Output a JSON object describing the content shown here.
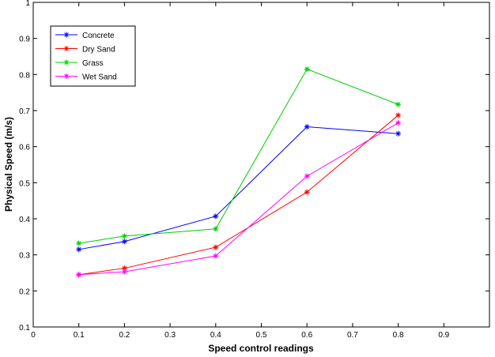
{
  "chart_data": {
    "type": "line",
    "title": "",
    "xlabel": "Speed control readings",
    "ylabel": "Physical Speed (m/s)",
    "xlim": [
      0,
      1
    ],
    "ylim": [
      0.1,
      1
    ],
    "xticks": [
      "0",
      "0.1",
      "0.2",
      "0.3",
      "0.4",
      "0.5",
      "0.6",
      "0.7",
      "0.8",
      "0.9"
    ],
    "xtick_values": [
      0,
      0.1,
      0.2,
      0.3,
      0.4,
      0.5,
      0.6,
      0.7,
      0.8,
      0.9
    ],
    "yticks": [
      "0.1",
      "0.2",
      "0.3",
      "0.4",
      "0.5",
      "0.6",
      "0.7",
      "0.8",
      "0.9",
      "1"
    ],
    "ytick_values": [
      0.1,
      0.2,
      0.3,
      0.4,
      0.5,
      0.6,
      0.7,
      0.8,
      0.9,
      1
    ],
    "grid": false,
    "legend_position": "top-left",
    "marker": "asterisk",
    "x": [
      0.1,
      0.2,
      0.4,
      0.6,
      0.8
    ],
    "series": [
      {
        "name": "Concrete",
        "color": "#0000ff",
        "values": [
          0.315,
          0.337,
          0.407,
          0.655,
          0.636
        ]
      },
      {
        "name": "Dry Sand",
        "color": "#ff0000",
        "values": [
          0.245,
          0.263,
          0.321,
          0.474,
          0.687
        ]
      },
      {
        "name": "Grass",
        "color": "#00cc00",
        "values": [
          0.332,
          0.352,
          0.372,
          0.815,
          0.717
        ]
      },
      {
        "name": "Wet Sand",
        "color": "#ff00ff",
        "values": [
          0.245,
          0.253,
          0.297,
          0.518,
          0.666
        ]
      }
    ]
  }
}
